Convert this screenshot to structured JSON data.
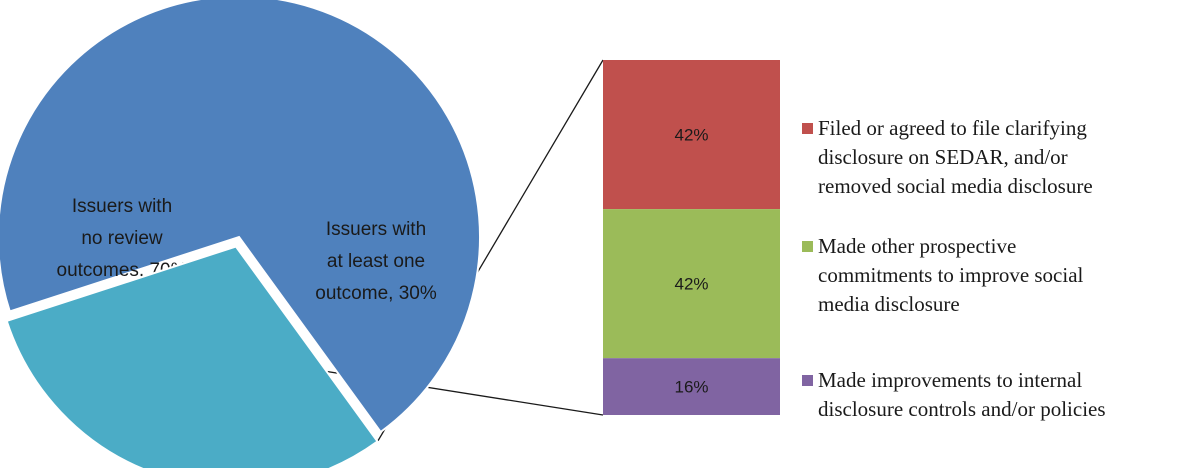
{
  "chart_data": [
    {
      "type": "pie",
      "title": "",
      "slices": [
        {
          "label_lines": [
            "Issuers with",
            "no review",
            "outcomes, 70%"
          ],
          "value": 70,
          "color": "#4f81bd"
        },
        {
          "label_lines": [
            "Issuers with",
            "at least one",
            "outcome, 30%"
          ],
          "value": 30,
          "color": "#4bacc6",
          "exploded": true
        }
      ]
    },
    {
      "type": "bar",
      "stacked": true,
      "breakdown_of": "Issuers with at least one outcome, 30%",
      "series": [
        {
          "name_lines": [
            "Filed or agreed to file clarifying",
            "disclosure on SEDAR, and/or",
            "removed social media disclosure"
          ],
          "value": 42,
          "label": "42%",
          "color": "#c0504d"
        },
        {
          "name_lines": [
            "Made other prospective",
            "commitments to improve social",
            "media disclosure"
          ],
          "value": 42,
          "label": "42%",
          "color": "#9bbb59"
        },
        {
          "name_lines": [
            "Made improvements to internal",
            "disclosure controls and/or policies"
          ],
          "value": 16,
          "label": "16%",
          "color": "#8064a2"
        }
      ],
      "legend_position": "right"
    }
  ]
}
